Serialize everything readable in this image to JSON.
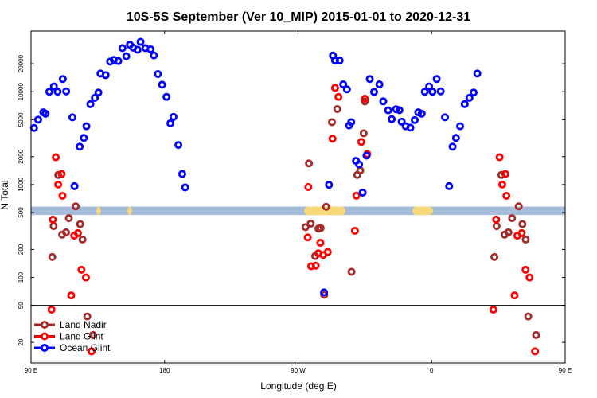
{
  "chart_data": {
    "type": "scatter",
    "title": "10S-5S September (Ver 10_MIP)   2015-01-01 to 2020-12-31",
    "xlabel": "Longitude (deg E)",
    "ylabel": "N Total",
    "xscale": "longitude from 90E eastward through 360 degrees",
    "xlim": [
      90,
      450
    ],
    "yscale": "log",
    "ylim": [
      12,
      45000
    ],
    "x_ticks": [
      {
        "value": 90,
        "label": "90 E"
      },
      {
        "value": 180,
        "label": "180"
      },
      {
        "value": 270,
        "label": "90 W"
      },
      {
        "value": 360,
        "label": "0"
      },
      {
        "value": 450,
        "label": "90 E"
      },
      {
        "value": 540,
        "label": "180"
      }
    ],
    "y_ticks": [
      {
        "value": 20,
        "label": "20"
      },
      {
        "value": 50,
        "label": "50"
      },
      {
        "value": 100,
        "label": "100"
      },
      {
        "value": 200,
        "label": "200"
      },
      {
        "value": 500,
        "label": "500"
      },
      {
        "value": 1000,
        "label": "1000"
      },
      {
        "value": 2000,
        "label": "2000"
      },
      {
        "value": 5000,
        "label": "5000"
      },
      {
        "value": 10000,
        "label": "10000"
      },
      {
        "value": 20000,
        "label": "20000"
      }
    ],
    "reference_line": 50,
    "map_strip": {
      "y_range": [
        470,
        580
      ],
      "ocean_color": "#a6bddb",
      "land_color": "#f7d97a",
      "land_segments_deg": [
        [
          134,
          137
        ],
        [
          155,
          158
        ],
        [
          274,
          302
        ],
        [
          347,
          361
        ]
      ]
    },
    "legend_position": "bottom-left",
    "series": [
      {
        "name": "Land Nadir",
        "color": "#a52a2a",
        "points": [
          [
            104.3,
            166
          ],
          [
            105.2,
            357
          ],
          [
            108.3,
            1270
          ],
          [
            111.0,
            289
          ],
          [
            113.6,
            306
          ],
          [
            115.5,
            435
          ],
          [
            120.1,
            583
          ],
          [
            123.1,
            375
          ],
          [
            124.7,
            256
          ],
          [
            127.9,
            38
          ],
          [
            131.8,
            24
          ],
          [
            275.0,
            348
          ],
          [
            277.3,
            1690
          ],
          [
            278.5,
            380
          ],
          [
            281.5,
            170
          ],
          [
            283.7,
            335
          ],
          [
            285.2,
            340
          ],
          [
            287.6,
            65
          ],
          [
            288.9,
            577
          ],
          [
            292.8,
            4700
          ],
          [
            296.4,
            6500
          ],
          [
            306.0,
            115
          ],
          [
            309.9,
            1270
          ],
          [
            311.9,
            1420
          ],
          [
            314.2,
            3570
          ],
          [
            315.0,
            7870
          ],
          [
            402.3,
            166
          ],
          [
            403.8,
            357
          ],
          [
            407.0,
            1270
          ],
          [
            409.2,
            289
          ],
          [
            411.8,
            306
          ],
          [
            414.2,
            435
          ],
          [
            418.7,
            583
          ],
          [
            421.2,
            375
          ],
          [
            423.4,
            256
          ],
          [
            425.1,
            38
          ],
          [
            430.4,
            24
          ]
        ]
      },
      {
        "name": "Land Glint",
        "color": "#ff0000",
        "points": [
          [
            103.8,
            45
          ],
          [
            104.7,
            420
          ],
          [
            106.7,
            1970
          ],
          [
            108.3,
            1000
          ],
          [
            110.6,
            1300
          ],
          [
            111.2,
            757
          ],
          [
            117.1,
            64
          ],
          [
            119.1,
            282
          ],
          [
            121.6,
            300
          ],
          [
            124.0,
            121
          ],
          [
            127.0,
            100
          ],
          [
            130.8,
            16
          ],
          [
            276.9,
            940
          ],
          [
            276.5,
            270
          ],
          [
            278.8,
            132
          ],
          [
            281.9,
            134
          ],
          [
            283.6,
            182
          ],
          [
            285.0,
            236
          ],
          [
            286.9,
            175
          ],
          [
            290.0,
            188
          ],
          [
            293.2,
            3120
          ],
          [
            294.9,
            11000
          ],
          [
            297.2,
            8800
          ],
          [
            308.3,
            318
          ],
          [
            309.3,
            760
          ],
          [
            312.6,
            2880
          ],
          [
            315.0,
            8400
          ],
          [
            316.6,
            2130
          ],
          [
            401.6,
            45
          ],
          [
            403.5,
            420
          ],
          [
            405.8,
            1970
          ],
          [
            407.6,
            1000
          ],
          [
            409.7,
            1300
          ],
          [
            410.4,
            757
          ],
          [
            415.9,
            64
          ],
          [
            417.8,
            282
          ],
          [
            420.7,
            300
          ],
          [
            423.3,
            121
          ],
          [
            426.0,
            100
          ],
          [
            429.7,
            16
          ]
        ]
      },
      {
        "name": "Ocean Glint",
        "color": "#0000ff",
        "points": [
          [
            92.0,
            4070
          ],
          [
            94.8,
            5000
          ],
          [
            98.3,
            6000
          ],
          [
            99.8,
            5800
          ],
          [
            102.3,
            10000
          ],
          [
            105.4,
            11400
          ],
          [
            107.9,
            10000
          ],
          [
            111.4,
            13700
          ],
          [
            113.7,
            10100
          ],
          [
            117.9,
            5300
          ],
          [
            119.3,
            962
          ],
          [
            122.8,
            2560
          ],
          [
            125.6,
            3180
          ],
          [
            127.3,
            4250
          ],
          [
            130.0,
            7350
          ],
          [
            133.0,
            8600
          ],
          [
            135.4,
            9800
          ],
          [
            136.8,
            15700
          ],
          [
            140.3,
            15100
          ],
          [
            143.3,
            21100
          ],
          [
            145.8,
            22000
          ],
          [
            148.8,
            21400
          ],
          [
            151.6,
            29500
          ],
          [
            154.2,
            24100
          ],
          [
            156.6,
            32000
          ],
          [
            158.8,
            29800
          ],
          [
            161.8,
            28300
          ],
          [
            163.8,
            34500
          ],
          [
            167.1,
            29500
          ],
          [
            170.6,
            28600
          ],
          [
            172.8,
            24600
          ],
          [
            175.5,
            15500
          ],
          [
            178.3,
            11900
          ],
          [
            181.3,
            8800
          ],
          [
            183.9,
            4570
          ],
          [
            186.0,
            5360
          ],
          [
            189.3,
            2670
          ],
          [
            191.9,
            1300
          ],
          [
            193.9,
            932
          ],
          [
            287.5,
            69
          ],
          [
            290.8,
            994
          ],
          [
            293.5,
            24500
          ],
          [
            294.9,
            21700
          ],
          [
            298.0,
            21700
          ],
          [
            300.4,
            12000
          ],
          [
            302.9,
            10600
          ],
          [
            304.4,
            4330
          ],
          [
            305.8,
            4700
          ],
          [
            309.0,
            1800
          ],
          [
            311.1,
            1650
          ],
          [
            313.5,
            820
          ],
          [
            316.1,
            2050
          ],
          [
            318.3,
            13700
          ],
          [
            321.2,
            9950
          ],
          [
            324.8,
            12000
          ],
          [
            327.4,
            7880
          ],
          [
            330.7,
            6300
          ],
          [
            333.1,
            5060
          ],
          [
            336.0,
            6470
          ],
          [
            338.3,
            6330
          ],
          [
            339.8,
            4760
          ],
          [
            342.5,
            4250
          ],
          [
            345.7,
            4100
          ],
          [
            348.6,
            4950
          ],
          [
            351.0,
            6000
          ],
          [
            353.3,
            5800
          ],
          [
            355.4,
            10000
          ],
          [
            358.3,
            11400
          ],
          [
            360.6,
            10000
          ],
          [
            363.4,
            13700
          ],
          [
            366.1,
            10100
          ],
          [
            369.0,
            5300
          ],
          [
            371.8,
            962
          ],
          [
            374.1,
            2560
          ],
          [
            376.4,
            3180
          ],
          [
            379.2,
            4250
          ],
          [
            382.3,
            7350
          ],
          [
            385.5,
            8600
          ],
          [
            388.3,
            9800
          ],
          [
            390.8,
            15700
          ]
        ]
      }
    ]
  }
}
